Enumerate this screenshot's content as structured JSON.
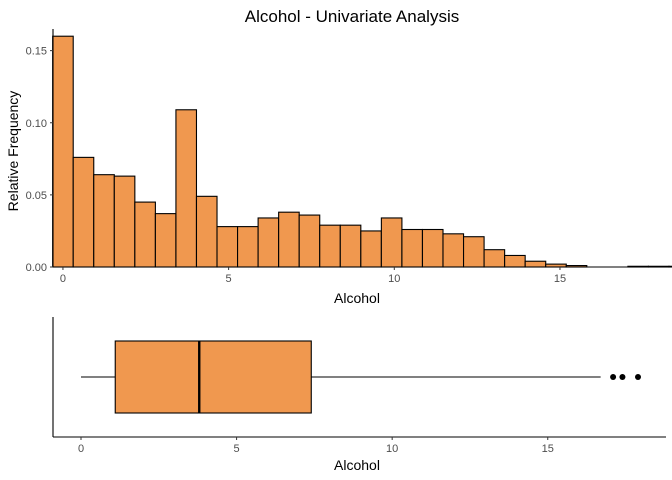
{
  "chart_data": [
    {
      "type": "bar",
      "title": "Alcohol - Univariate Analysis",
      "xlabel": "Alcohol",
      "ylabel": "Relative Frequency",
      "xlim": [
        -0.3,
        18.2
      ],
      "ylim": [
        0,
        0.165
      ],
      "x_ticks": [
        0,
        5,
        10,
        15
      ],
      "y_ticks": [
        0.0,
        0.05,
        0.1,
        0.15
      ],
      "y_tick_labels": [
        "0.00",
        "0.05",
        "0.10",
        "0.15"
      ],
      "bin_width": 0.62,
      "bin_start": -0.31,
      "values": [
        0.16,
        0.076,
        0.064,
        0.063,
        0.045,
        0.037,
        0.109,
        0.049,
        0.028,
        0.028,
        0.034,
        0.038,
        0.036,
        0.029,
        0.029,
        0.025,
        0.034,
        0.026,
        0.026,
        0.023,
        0.021,
        0.012,
        0.008,
        0.004,
        0.002,
        0.001,
        0.0,
        0.0,
        0.0005,
        0.0005,
        0.0005
      ],
      "fill": "#f0984f",
      "stroke": "#000000",
      "grid": false
    },
    {
      "type": "box",
      "xlabel": "Alcohol",
      "xlim": [
        -0.9,
        18.8
      ],
      "x_ticks": [
        0,
        5,
        10,
        15
      ],
      "whisker_low": 0.0,
      "q1": 1.1,
      "median": 3.8,
      "q3": 7.4,
      "whisker_high": 16.7,
      "outliers": [
        17.1,
        17.4,
        17.9
      ],
      "fill": "#f0984f",
      "stroke": "#000000",
      "grid": false
    }
  ]
}
